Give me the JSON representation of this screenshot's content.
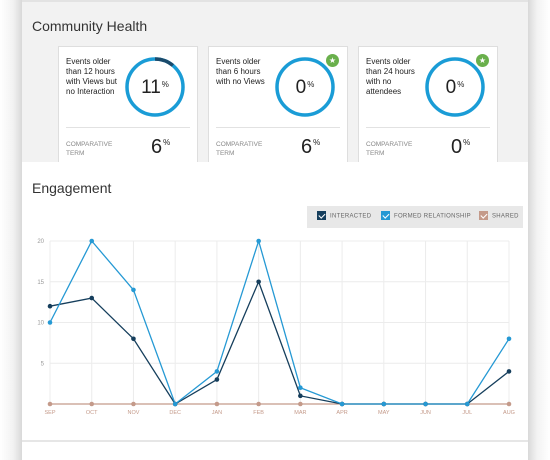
{
  "community_health": {
    "title": "Community Health",
    "cards": [
      {
        "description": "Events older than 12 hours with Views but no Interaction",
        "value": "11",
        "value_unit": "%",
        "ring_fraction": 0.11,
        "has_star": false,
        "comparative_label": "COMPARATIVE TERM",
        "comparative_value": "6",
        "comparative_unit": "%"
      },
      {
        "description": "Events older than 6 hours with no Views",
        "value": "0",
        "value_unit": "%",
        "ring_fraction": 0,
        "has_star": true,
        "comparative_label": "COMPARATIVE TERM",
        "comparative_value": "6",
        "comparative_unit": "%"
      },
      {
        "description": "Events older than 24 hours with no attendees",
        "value": "0",
        "value_unit": "%",
        "ring_fraction": 0,
        "has_star": true,
        "comparative_label": "COMPARATIVE TERM",
        "comparative_value": "0",
        "comparative_unit": "%"
      }
    ],
    "colors": {
      "ring": "#1a9cd6",
      "ring_progress": "#1b4a6b",
      "star": "#6ab04c"
    }
  },
  "engagement": {
    "title": "Engagement",
    "legend": [
      {
        "label": "INTERACTED",
        "color": "#153e5c"
      },
      {
        "label": "FORMED RELATIONSHIP",
        "color": "#2599d4"
      },
      {
        "label": "SHARED",
        "color": "#c49a8a"
      }
    ]
  },
  "chart_data": {
    "type": "line",
    "categories": [
      "SEP",
      "OCT",
      "NOV",
      "DEC",
      "JAN",
      "FEB",
      "MAR",
      "APR",
      "MAY",
      "JUN",
      "JUL",
      "AUG"
    ],
    "ylim": [
      0,
      20
    ],
    "yticks": [
      5,
      10,
      15,
      20
    ],
    "grid": true,
    "legend_position": "top-right",
    "series": [
      {
        "name": "INTERACTED",
        "color": "#153e5c",
        "values": [
          12,
          13,
          8,
          0,
          3,
          15,
          1,
          0,
          0,
          0,
          0,
          4
        ]
      },
      {
        "name": "FORMED RELATIONSHIP",
        "color": "#2599d4",
        "values": [
          10,
          20,
          14,
          0,
          4,
          20,
          2,
          0,
          0,
          0,
          0,
          8
        ]
      },
      {
        "name": "SHARED",
        "color": "#c49a8a",
        "values": [
          0,
          0,
          0,
          0,
          0,
          0,
          0,
          0,
          0,
          0,
          0,
          0
        ]
      }
    ]
  }
}
